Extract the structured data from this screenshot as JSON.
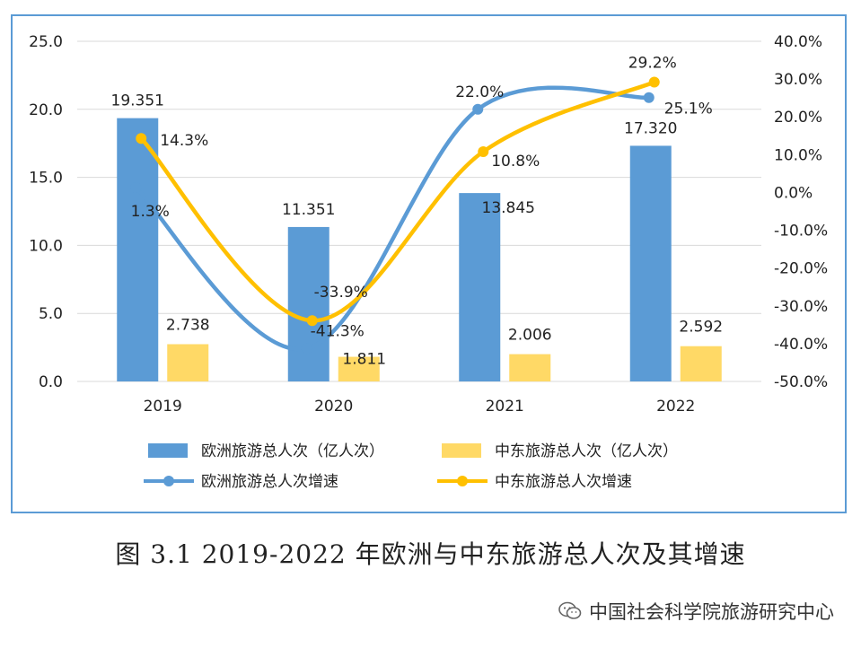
{
  "caption": "图 3.1 2019-2022 年欧洲与中东旅游总人次及其增速",
  "watermark": "中国社会科学院旅游研究中心",
  "chart_data": {
    "type": "bar",
    "categories": [
      "2019",
      "2020",
      "2021",
      "2022"
    ],
    "left_axis": {
      "min": 0,
      "max": 25,
      "ticks": [
        "0.0",
        "5.0",
        "10.0",
        "15.0",
        "20.0",
        "25.0"
      ]
    },
    "right_axis": {
      "min": -50,
      "max": 40,
      "ticks": [
        "-50.0%",
        "-40.0%",
        "-30.0%",
        "-20.0%",
        "-10.0%",
        "0.0%",
        "10.0%",
        "20.0%",
        "30.0%",
        "40.0%"
      ]
    },
    "bar_series": [
      {
        "name": "欧洲旅游总人次（亿人次）",
        "color": "#5b9bd5",
        "values": [
          19.351,
          11.351,
          13.845,
          17.32
        ],
        "labels": [
          "19.351",
          "11.351",
          "13.845",
          "17.320"
        ]
      },
      {
        "name": "中东旅游总人次（亿人次）",
        "color": "#ffd966",
        "values": [
          2.738,
          1.811,
          2.006,
          2.592
        ],
        "labels": [
          "2.738",
          "1.811",
          "2.006",
          "2.592"
        ]
      }
    ],
    "line_series": [
      {
        "name": "欧洲旅游总人次增速",
        "color": "#5b9bd5",
        "values": [
          1.3,
          -41.3,
          22.0,
          25.1
        ],
        "labels": [
          "1.3%",
          "-41.3%",
          "22.0%",
          "25.1%"
        ]
      },
      {
        "name": "中东旅游总人次增速",
        "color": "#ffc000",
        "values": [
          14.3,
          -33.9,
          10.8,
          29.2
        ],
        "labels": [
          "14.3%",
          "-33.9%",
          "10.8%",
          "29.2%"
        ]
      }
    ],
    "grid": true,
    "legend": "bottom"
  }
}
